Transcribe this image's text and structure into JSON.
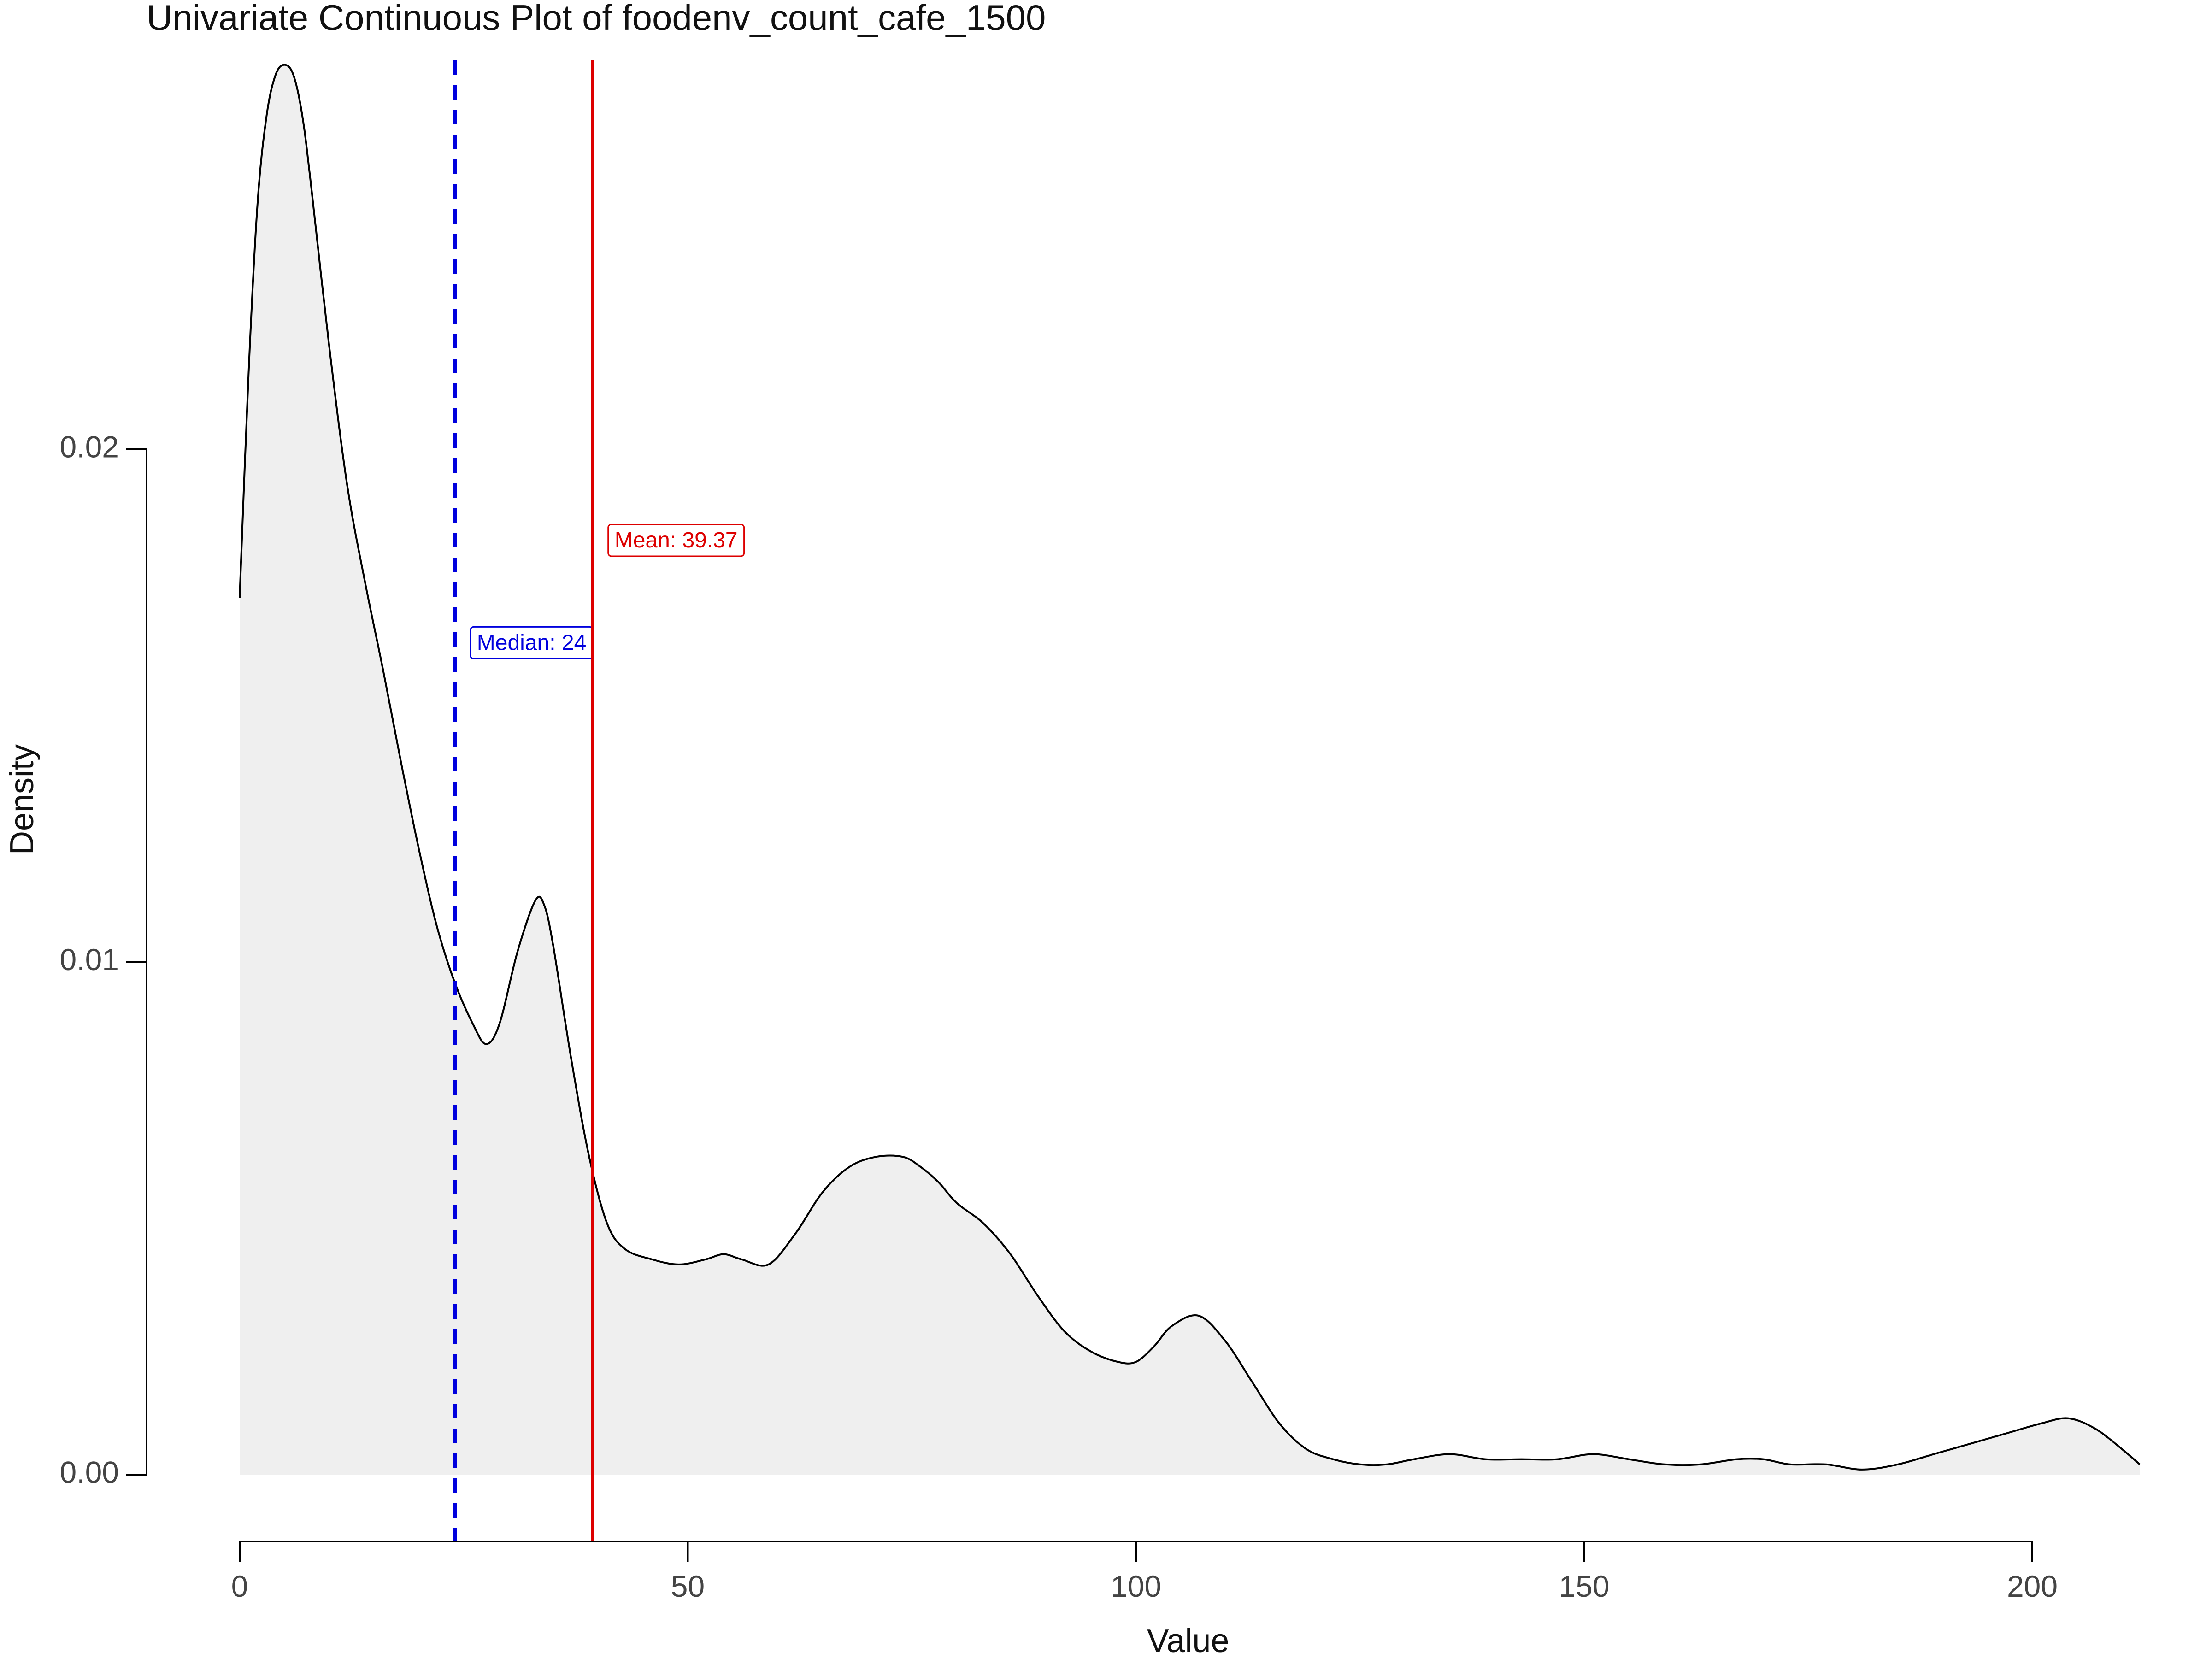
{
  "chart_data": {
    "type": "area",
    "title": "Univariate Continuous Plot of foodenv_count_cafe_1500",
    "xlabel": "Value",
    "ylabel": "Density",
    "xlim": [
      0,
      212
    ],
    "ylim": [
      -0.001,
      0.028
    ],
    "x_ticks": [
      0,
      50,
      100,
      150,
      200
    ],
    "x_tick_labels": [
      "0",
      "50",
      "100",
      "150",
      "200"
    ],
    "y_ticks": [
      0.0,
      0.01,
      0.02
    ],
    "y_tick_labels": [
      "0.00",
      "0.01",
      "0.02"
    ],
    "grid": false,
    "series": [
      {
        "x": [
          0,
          1,
          2,
          3,
          4,
          5,
          6,
          7,
          8,
          10,
          12,
          14,
          16,
          18,
          20,
          22,
          24,
          26,
          27.5,
          29,
          31,
          33,
          34,
          35,
          37,
          39,
          41,
          43,
          46,
          49,
          52,
          54,
          56,
          59,
          62,
          65,
          68,
          71,
          74,
          76,
          78,
          80,
          83,
          86,
          89,
          92,
          95,
          98,
          100,
          102,
          104,
          107,
          110,
          113,
          116,
          119,
          122,
          125,
          128,
          131,
          135,
          139,
          143,
          147,
          151,
          155,
          159,
          163,
          167,
          170,
          173,
          177,
          181,
          185,
          189,
          193,
          197,
          201,
          204,
          207,
          210,
          212
        ],
        "y": [
          0.0171,
          0.0215,
          0.0248,
          0.0265,
          0.0273,
          0.0275,
          0.0273,
          0.0265,
          0.0251,
          0.022,
          0.0193,
          0.0174,
          0.0157,
          0.0139,
          0.0122,
          0.0107,
          0.0096,
          0.0088,
          0.0084,
          0.0088,
          0.0102,
          0.0112,
          0.0111,
          0.0103,
          0.0081,
          0.0062,
          0.0049,
          0.0044,
          0.0042,
          0.0041,
          0.0042,
          0.0043,
          0.0042,
          0.0041,
          0.0047,
          0.0055,
          0.006,
          0.0062,
          0.0062,
          0.006,
          0.0057,
          0.0053,
          0.0049,
          0.0043,
          0.0035,
          0.0028,
          0.0024,
          0.0022,
          0.0022,
          0.0025,
          0.0029,
          0.0031,
          0.0026,
          0.0018,
          0.001,
          0.0005,
          0.0003,
          0.0002,
          0.0002,
          0.0003,
          0.0004,
          0.0003,
          0.0003,
          0.0003,
          0.0004,
          0.0003,
          0.0002,
          0.0002,
          0.0003,
          0.0003,
          0.0002,
          0.0002,
          0.0001,
          0.0002,
          0.0004,
          0.0006,
          0.0008,
          0.001,
          0.0011,
          0.0009,
          0.0005,
          0.0002
        ]
      }
    ],
    "reference_lines": [
      {
        "label": "Median: 24",
        "x": 24,
        "style": "dashed",
        "color": "#0000dd",
        "label_y": 0.0162
      },
      {
        "label": "Mean: 39.37",
        "x": 39.37,
        "style": "solid",
        "color": "#dd0000",
        "label_y": 0.0182
      }
    ],
    "colors": {
      "fill": "#efefef",
      "curve": "#000000",
      "axis": "#000000"
    }
  }
}
